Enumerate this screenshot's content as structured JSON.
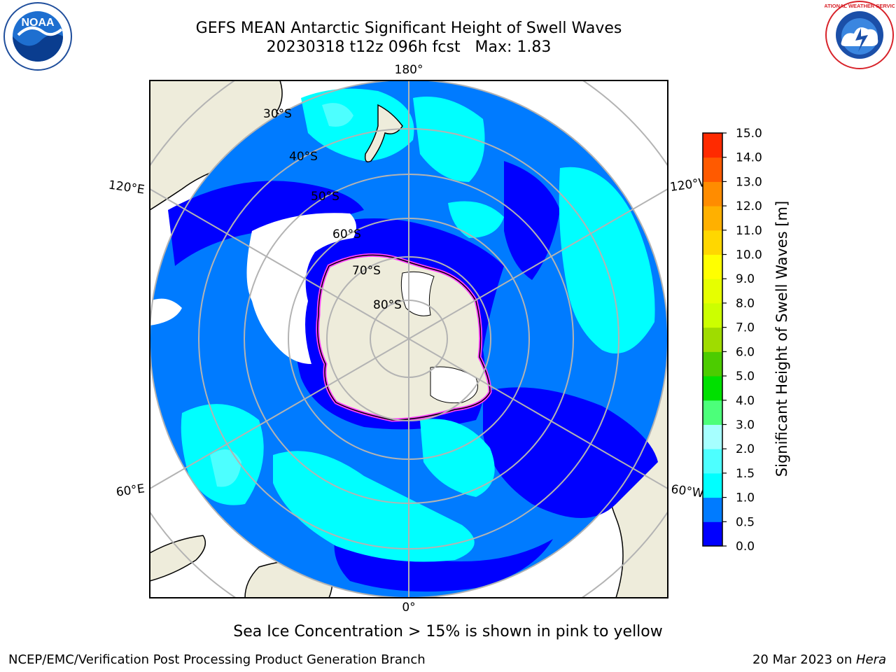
{
  "title_line1": "GEFS MEAN Antarctic Significant Height of Swell Waves",
  "title_line2": "20230318 t12z 096h fcst   Max: 1.83",
  "map": {
    "projection": "south-polar-stereographic",
    "longitude_labels": [
      "180°",
      "120°E",
      "120°W",
      "60°E",
      "60°W",
      "0°"
    ],
    "latitude_labels": [
      "30°S",
      "40°S",
      "50°S",
      "60°S",
      "70°S",
      "80°S"
    ],
    "colors": {
      "ocean_low": "#0000ff",
      "ocean_mid": "#007bff",
      "ocean_swell": "#00ffff",
      "ocean_swell_high": "#4dffff",
      "land": "#eeecdb",
      "sea_ice": "#ffffff",
      "ice_edge": "#ff40ff",
      "gridline": "#b3b3b3"
    }
  },
  "colorbar": {
    "label": "Significant Height of Swell Waves [m]",
    "ticks": [
      "0.0",
      "0.5",
      "1.0",
      "1.5",
      "2.0",
      "3.0",
      "4.0",
      "5.0",
      "6.0",
      "7.0",
      "8.0",
      "9.0",
      "10.0",
      "11.0",
      "12.0",
      "13.0",
      "14.0",
      "15.0"
    ],
    "colors": [
      "#0000ff",
      "#007bff",
      "#00ffff",
      "#4dffff",
      "#a6ffff",
      "#4cff7a",
      "#00e000",
      "#4ccc00",
      "#9fdc00",
      "#ccff00",
      "#e6ff00",
      "#ffff00",
      "#ffd700",
      "#ffb000",
      "#ff8c00",
      "#ff5a00",
      "#ff2a00",
      "#ff0000"
    ]
  },
  "note": "Sea Ice Concentration > 15% is shown in pink to yellow",
  "credit_left": "NCEP/EMC/Verification Post Processing Product Generation Branch",
  "credit_right_date": "20 Mar 2023 on ",
  "credit_right_machine": "Hera",
  "logos": {
    "left_icon": "noaa-logo",
    "left_text": "NOAA",
    "right_icon": "nws-logo",
    "right_text": "NATIONAL WEATHER SERVICE"
  }
}
